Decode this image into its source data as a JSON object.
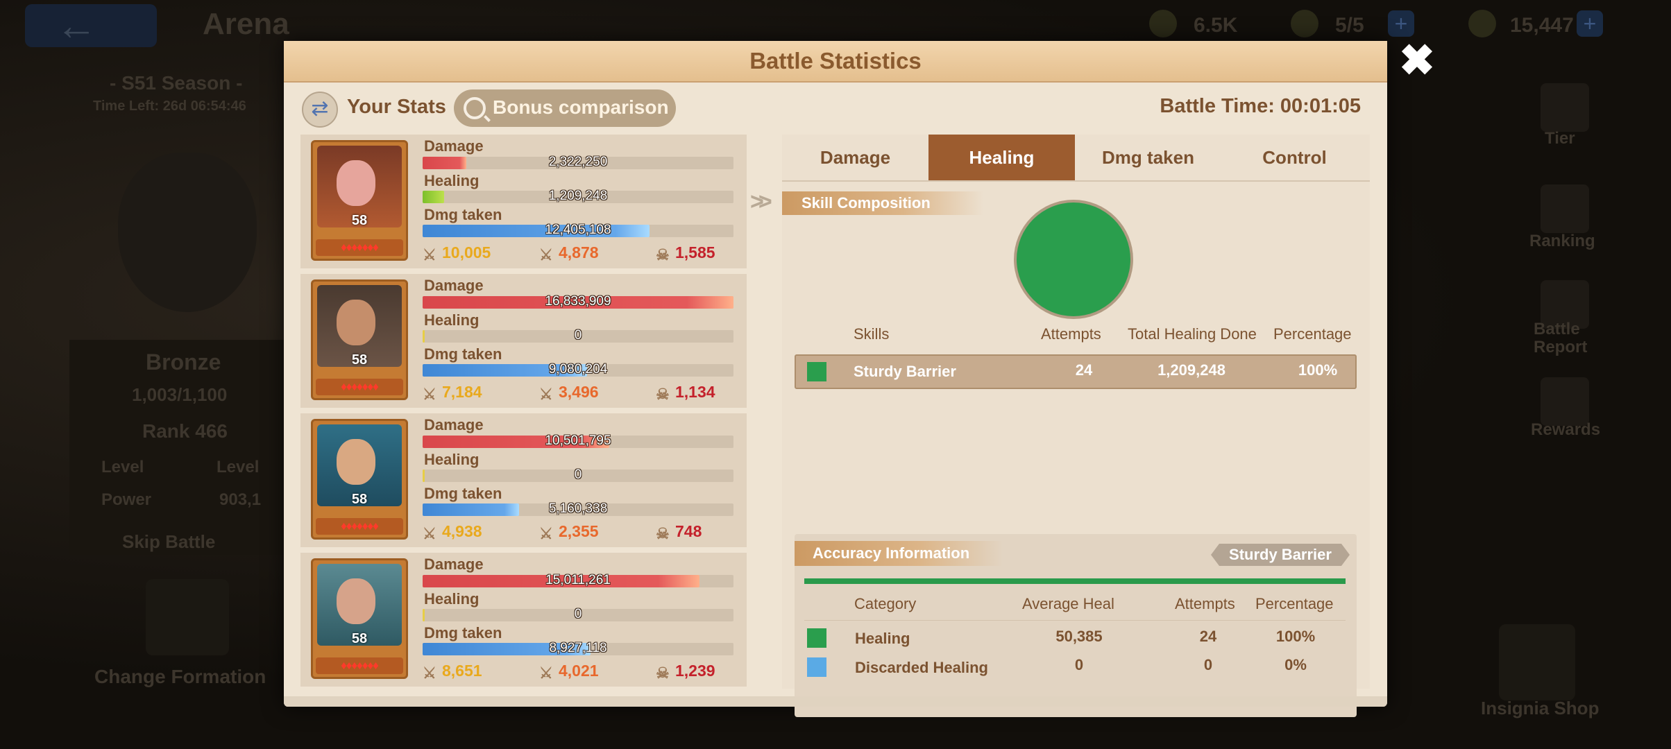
{
  "background": {
    "screen_title": "Arena",
    "resources": [
      "6.5K",
      "5/5",
      "15,447"
    ],
    "season": "- S51 Season -",
    "time_left": "Time Left: 26d 06:54:46",
    "tier_name": "Bronze",
    "tier_progress": "1,003/1,100",
    "rank": "Rank 466",
    "level_label": "Level",
    "level_label2": "Level",
    "power_label": "Power",
    "power_value": "903,1",
    "skip_battle": "Skip Battle",
    "change_formation": "Change Formation",
    "side_menu": [
      "Tier",
      "Ranking",
      "Battle Report",
      "Rewards",
      "Insignia Shop"
    ]
  },
  "modal": {
    "title": "Battle Statistics",
    "close_icon": "close-icon",
    "your_stats": "Your Stats",
    "bonus_comparison": "Bonus comparison",
    "battle_time": "Battle Time: 00:01:05"
  },
  "stat_labels": {
    "damage": "Damage",
    "healing": "Healing",
    "dmg_taken": "Dmg taken"
  },
  "heroes": [
    {
      "level": "58",
      "stars": "♦♦♦♦♦♦♦",
      "damage": "2,322,250",
      "damage_fill": 0.14,
      "healing": "1,209,248",
      "healing_fill": 0.07,
      "dmg_taken": "12,405,108",
      "dmg_taken_fill": 0.73,
      "kill_a": "10,005",
      "kill_b": "4,878",
      "deaths": "1,585"
    },
    {
      "level": "58",
      "stars": "♦♦♦♦♦♦♦",
      "damage": "16,833,909",
      "damage_fill": 1.0,
      "healing": "0",
      "healing_fill": 0,
      "dmg_taken": "9,080,204",
      "dmg_taken_fill": 0.53,
      "kill_a": "7,184",
      "kill_b": "3,496",
      "deaths": "1,134"
    },
    {
      "level": "58",
      "stars": "♦♦♦♦♦♦♦",
      "damage": "10,501,795",
      "damage_fill": 0.6,
      "healing": "0",
      "healing_fill": 0,
      "dmg_taken": "5,160,338",
      "dmg_taken_fill": 0.31,
      "kill_a": "4,938",
      "kill_b": "2,355",
      "deaths": "748"
    },
    {
      "level": "58",
      "stars": "♦♦♦♦♦♦♦",
      "damage": "15,011,261",
      "damage_fill": 0.89,
      "healing": "0",
      "healing_fill": 0,
      "dmg_taken": "8,927,118",
      "dmg_taken_fill": 0.54,
      "kill_a": "8,651",
      "kill_b": "4,021",
      "deaths": "1,239"
    }
  ],
  "tabs": [
    {
      "label": "Damage",
      "active": false
    },
    {
      "label": "Healing",
      "active": true
    },
    {
      "label": "Dmg taken",
      "active": false
    },
    {
      "label": "Control",
      "active": false
    }
  ],
  "skill_composition": {
    "title": "Skill Composition",
    "pie_color": "#2a9e4d",
    "headers": {
      "skills": "Skills",
      "attempts": "Attempts",
      "total": "Total Healing Done",
      "percentage": "Percentage"
    },
    "rows": [
      {
        "name": "Sturdy Barrier",
        "attempts": "24",
        "total": "1,209,248",
        "percentage": "100%",
        "color": "#2a9e4d"
      }
    ]
  },
  "accuracy": {
    "title": "Accuracy Information",
    "skill_tag": "Sturdy Barrier",
    "headers": {
      "category": "Category",
      "average": "Average Heal",
      "attempts": "Attempts",
      "percentage": "Percentage"
    },
    "rows": [
      {
        "category": "Healing",
        "average": "50,385",
        "attempts": "24",
        "percentage": "100%",
        "color": "#2a9e4d"
      },
      {
        "category": "Discarded Healing",
        "average": "0",
        "attempts": "0",
        "percentage": "0%",
        "color": "#5aaae5"
      }
    ]
  }
}
